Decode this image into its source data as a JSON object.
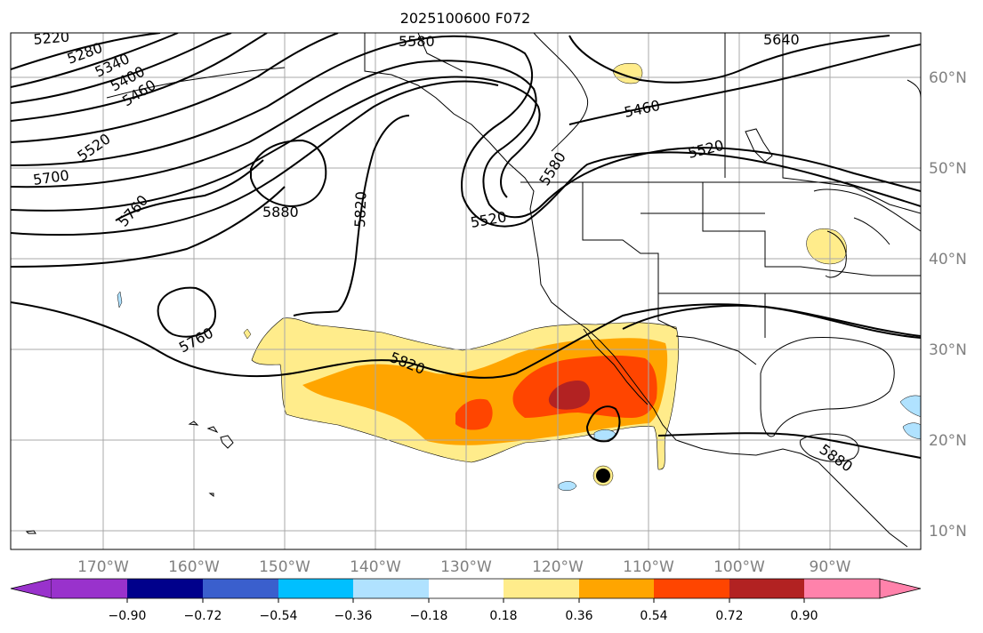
{
  "title": "2025100600 F072",
  "lon_ticks": [
    {
      "label": "170°W",
      "lon": -170
    },
    {
      "label": "160°W",
      "lon": -160
    },
    {
      "label": "150°W",
      "lon": -150
    },
    {
      "label": "140°W",
      "lon": -140
    },
    {
      "label": "130°W",
      "lon": -130
    },
    {
      "label": "120°W",
      "lon": -120
    },
    {
      "label": "110°W",
      "lon": -110
    },
    {
      "label": "100°W",
      "lon": -100
    },
    {
      "label": "90°W",
      "lon": -90
    }
  ],
  "lat_ticks": [
    {
      "label": "60°N",
      "lat": 60
    },
    {
      "label": "50°N",
      "lat": 50
    },
    {
      "label": "40°N",
      "lat": 40
    },
    {
      "label": "30°N",
      "lat": 30
    },
    {
      "label": "20°N",
      "lat": 20
    },
    {
      "label": "10°N",
      "lat": 10
    }
  ],
  "height_contour_labels": [
    "5220",
    "5280",
    "5340",
    "5400",
    "5460",
    "5520",
    "5580",
    "5640",
    "5460",
    "5520",
    "5700",
    "5760",
    "5880",
    "5820",
    "5520",
    "5580",
    "5760",
    "5820",
    "5880"
  ],
  "colorbar": {
    "ticks": [
      "−0.90",
      "−0.72",
      "−0.54",
      "−0.36",
      "−0.18",
      "0.18",
      "0.36",
      "0.54",
      "0.72",
      "0.90"
    ],
    "colors": [
      "#9932cc",
      "#00008b",
      "#3a5fcd",
      "#00bfff",
      "#b0e2ff",
      "#ffffff",
      "#ffec8b",
      "#ffa500",
      "#ff4500",
      "#b22222",
      "#ff82ab"
    ]
  },
  "colors": {
    "light_yellow": "#ffec8b",
    "orange": "#ffa500",
    "red_orange": "#ff4500",
    "dark_red": "#b22222",
    "light_blue": "#b0e2ff",
    "grid": "#a9a9a9"
  }
}
